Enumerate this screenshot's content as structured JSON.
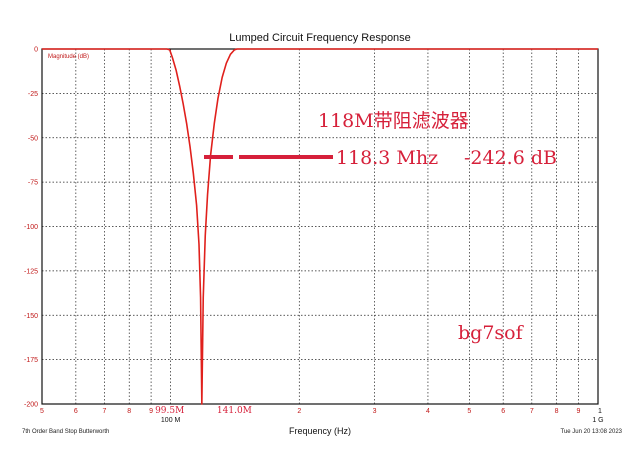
{
  "chart_data": {
    "type": "line",
    "title": "Lumped Circuit Frequency Response",
    "xlabel": "Frequency (Hz)",
    "ylabel": "Magnitude (dB)",
    "x_scale": "log",
    "xlim": [
      50000000,
      1000000000
    ],
    "ylim": [
      -200,
      0
    ],
    "y_ticks": [
      0,
      -25,
      -50,
      -75,
      -100,
      -125,
      -150,
      -175,
      -200
    ],
    "x_ticks": [
      {
        "value": 50000000,
        "label": "5"
      },
      {
        "value": 60000000,
        "label": "6"
      },
      {
        "value": 70000000,
        "label": "7"
      },
      {
        "value": 80000000,
        "label": "8"
      },
      {
        "value": 90000000,
        "label": "9"
      },
      {
        "value": 100000000,
        "label": "100 M"
      },
      {
        "value": 200000000,
        "label": "2"
      },
      {
        "value": 300000000,
        "label": "3"
      },
      {
        "value": 400000000,
        "label": "4"
      },
      {
        "value": 500000000,
        "label": "5"
      },
      {
        "value": 600000000,
        "label": "6"
      },
      {
        "value": 700000000,
        "label": "7"
      },
      {
        "value": 800000000,
        "label": "8"
      },
      {
        "value": 900000000,
        "label": "9"
      },
      {
        "value": 1000000000,
        "label": "1 G"
      }
    ],
    "grid": true,
    "series": [
      {
        "color": "#e0201c",
        "x": [
          50000000,
          70000000,
          90000000,
          94000000,
          96000000,
          98000000,
          99500000,
          101000000,
          103000000,
          105000000,
          107000000,
          109000000,
          111000000,
          113000000,
          115000000,
          116500000,
          117500000,
          118300000,
          119200000,
          120500000,
          122000000,
          124000000,
          126500000,
          129000000,
          132000000,
          135000000,
          138000000,
          141000000,
          143000000,
          150000000,
          300000000,
          1000000000
        ],
        "y": [
          0,
          0,
          0,
          0,
          0,
          0,
          -0.5,
          -5,
          -12,
          -21,
          -31,
          -42,
          -55,
          -70,
          -88,
          -110,
          -140,
          -200,
          -140,
          -105,
          -82,
          -60,
          -42,
          -28,
          -16,
          -8,
          -3,
          -0.5,
          0,
          0,
          0,
          0
        ]
      }
    ],
    "markers": [
      {
        "x": 99500000,
        "label": "99.5M"
      },
      {
        "x": 141000000,
        "label": "141.0M"
      }
    ],
    "annotations": {
      "heading": "118M带阻滤波器",
      "readout_freq": "118.3 Mhz",
      "readout_db": "-242.6 dB",
      "author": "bg7sof"
    },
    "footer_left": "7th Order Band Stop Butterworth",
    "footer_right": "Tue Jun 20 13:08 2023"
  },
  "colors": {
    "trace": "#e0201c",
    "annotation": "#d6203a",
    "tick_label": "#c01818",
    "grid": "#222222"
  }
}
